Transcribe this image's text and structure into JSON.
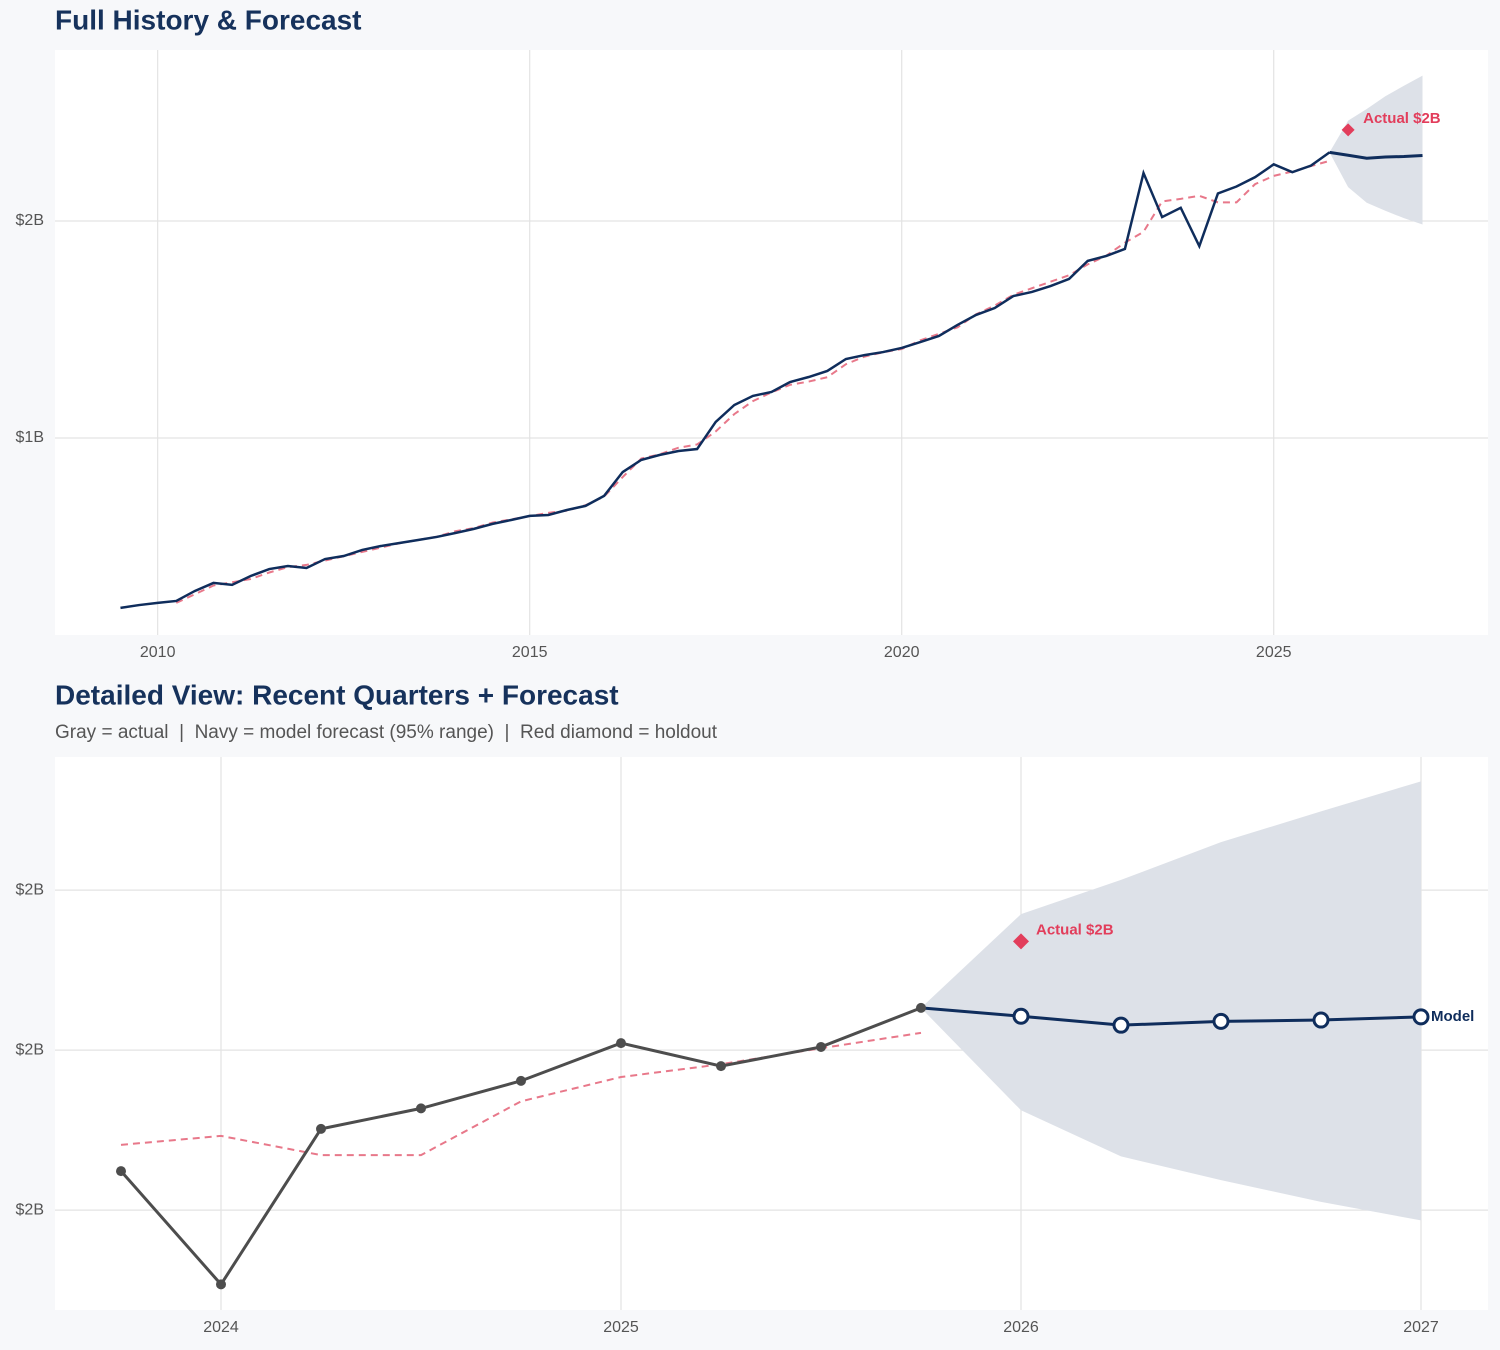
{
  "chart_data": [
    {
      "type": "line",
      "title": "Full History & Forecast",
      "xlim": [
        2008.62,
        2027.88
      ],
      "ylim": [
        0.092,
        2.788
      ],
      "xticks": [
        2010,
        2015,
        2020,
        2025
      ],
      "yticks": [
        {
          "value": 1,
          "label": "$1B"
        },
        {
          "value": 2,
          "label": "$2B"
        }
      ],
      "grid": true,
      "markers": false,
      "actual": {
        "color": "#0f2d5c",
        "x": [
          2009.5,
          2009.75,
          2010,
          2010.25,
          2010.5,
          2010.75,
          2011,
          2011.25,
          2011.5,
          2011.75,
          2012,
          2012.25,
          2012.5,
          2012.75,
          2013,
          2013.25,
          2013.5,
          2013.75,
          2014,
          2014.25,
          2014.5,
          2014.75,
          2015,
          2015.25,
          2015.5,
          2015.75,
          2016,
          2016.25,
          2016.5,
          2016.75,
          2017,
          2017.25,
          2017.5,
          2017.75,
          2018,
          2018.25,
          2018.5,
          2018.75,
          2019,
          2019.25,
          2019.5,
          2019.75,
          2020,
          2020.25,
          2020.5,
          2020.75,
          2021,
          2021.25,
          2021.5,
          2021.75,
          2022,
          2022.25,
          2022.5,
          2022.75,
          2023,
          2023.25,
          2023.5,
          2023.75,
          2024,
          2024.25,
          2024.5,
          2024.75,
          2025,
          2025.25,
          2025.5,
          2025.75
        ],
        "values": [
          0.217,
          0.23,
          0.24,
          0.249,
          0.295,
          0.332,
          0.323,
          0.364,
          0.396,
          0.41,
          0.401,
          0.442,
          0.456,
          0.484,
          0.502,
          0.516,
          0.53,
          0.544,
          0.562,
          0.581,
          0.604,
          0.622,
          0.641,
          0.645,
          0.668,
          0.687,
          0.733,
          0.843,
          0.899,
          0.922,
          0.94,
          0.949,
          1.074,
          1.152,
          1.194,
          1.212,
          1.258,
          1.281,
          1.309,
          1.364,
          1.382,
          1.396,
          1.415,
          1.442,
          1.47,
          1.521,
          1.567,
          1.599,
          1.654,
          1.673,
          1.7,
          1.733,
          1.816,
          1.839,
          1.871,
          2.221,
          2.018,
          2.061,
          1.884,
          2.127,
          2.159,
          2.202,
          2.261,
          2.225,
          2.255,
          2.316
        ]
      },
      "fitted": {
        "color": "#e8788a",
        "x": [
          2010.25,
          2010.5,
          2010.75,
          2011,
          2011.25,
          2011.5,
          2011.75,
          2012,
          2012.25,
          2012.5,
          2012.75,
          2013,
          2013.25,
          2013.5,
          2013.75,
          2014,
          2014.25,
          2014.5,
          2014.75,
          2015,
          2015.25,
          2015.5,
          2015.75,
          2016,
          2016.25,
          2016.5,
          2016.75,
          2017,
          2017.25,
          2017.5,
          2017.75,
          2018,
          2018.25,
          2018.5,
          2018.75,
          2019,
          2019.25,
          2019.5,
          2019.75,
          2020,
          2020.25,
          2020.5,
          2020.75,
          2021,
          2021.25,
          2021.5,
          2021.75,
          2022,
          2022.25,
          2022.5,
          2022.75,
          2023,
          2023.25,
          2023.5,
          2023.75,
          2024,
          2024.25,
          2024.5,
          2024.75,
          2025,
          2025.25,
          2025.5,
          2025.75
        ],
        "values": [
          0.24,
          0.28,
          0.32,
          0.335,
          0.35,
          0.38,
          0.405,
          0.415,
          0.435,
          0.455,
          0.475,
          0.495,
          0.515,
          0.53,
          0.545,
          0.57,
          0.585,
          0.61,
          0.625,
          0.64,
          0.655,
          0.665,
          0.69,
          0.73,
          0.82,
          0.905,
          0.925,
          0.955,
          0.97,
          1.03,
          1.11,
          1.17,
          1.21,
          1.245,
          1.26,
          1.28,
          1.34,
          1.375,
          1.395,
          1.41,
          1.45,
          1.48,
          1.51,
          1.57,
          1.61,
          1.66,
          1.69,
          1.72,
          1.75,
          1.8,
          1.84,
          1.9,
          1.95,
          2.09,
          2.102,
          2.116,
          2.086,
          2.086,
          2.17,
          2.208,
          2.228,
          2.253,
          2.277
        ]
      },
      "forecast": {
        "color": "#0f2d5c",
        "x": [
          2025.75,
          2026,
          2026.25,
          2026.5,
          2026.75,
          2027
        ],
        "values": [
          2.316,
          2.303,
          2.289,
          2.295,
          2.297,
          2.302
        ]
      },
      "band": {
        "color": "#dde1e8",
        "x": [
          2025.75,
          2026,
          2026.25,
          2026.5,
          2026.75,
          2027
        ],
        "upper": [
          2.316,
          2.4625,
          2.516,
          2.575,
          2.623,
          2.67
        ],
        "lower": [
          2.316,
          2.156,
          2.084,
          2.047,
          2.013,
          1.984
        ]
      },
      "holdout": {
        "color": "#e23d5b",
        "x": 2026,
        "value": 2.42,
        "label": "Actual $2B"
      }
    },
    {
      "type": "line",
      "title": "Detailed View: Recent Quarters + Forecast",
      "subtitle": "Gray = actual  |  Navy = model forecast (95% range)  |  Red diamond = holdout",
      "xlim": [
        2023.585,
        2027.1675
      ],
      "ylim": [
        1.844,
        2.708
      ],
      "xticks": [
        2024,
        2025,
        2026,
        2027
      ],
      "yticks": [
        {
          "value": 2,
          "label": "$2B"
        },
        {
          "value": 2.25,
          "label": "$2B"
        },
        {
          "value": 2.5,
          "label": "$2B"
        }
      ],
      "grid": true,
      "markers": true,
      "actual": {
        "color": "#4d4d4d",
        "x": [
          2023.75,
          2024,
          2024.25,
          2024.5,
          2024.75,
          2025,
          2025.25,
          2025.5,
          2025.75
        ],
        "values": [
          2.061,
          1.884,
          2.127,
          2.159,
          2.202,
          2.261,
          2.225,
          2.255,
          2.316
        ]
      },
      "fitted": {
        "color": "#e8788a",
        "x": [
          2023.75,
          2024,
          2024.25,
          2024.5,
          2024.75,
          2025,
          2025.25,
          2025.5,
          2025.75
        ],
        "values": [
          2.102,
          2.116,
          2.086,
          2.086,
          2.17,
          2.208,
          2.228,
          2.253,
          2.277
        ]
      },
      "forecast": {
        "color": "#0f2d5c",
        "x": [
          2025.75,
          2026,
          2026.25,
          2026.5,
          2026.75,
          2027
        ],
        "values": [
          2.316,
          2.303,
          2.289,
          2.295,
          2.297,
          2.302
        ],
        "label": "Model"
      },
      "band": {
        "color": "#dde1e8",
        "x": [
          2025.75,
          2026,
          2026.25,
          2026.5,
          2026.75,
          2027
        ],
        "upper": [
          2.316,
          2.4625,
          2.516,
          2.575,
          2.623,
          2.67
        ],
        "lower": [
          2.316,
          2.156,
          2.084,
          2.047,
          2.013,
          1.984
        ]
      },
      "holdout": {
        "color": "#e23d5b",
        "x": 2026,
        "value": 2.42,
        "label": "Actual $2B"
      }
    }
  ]
}
